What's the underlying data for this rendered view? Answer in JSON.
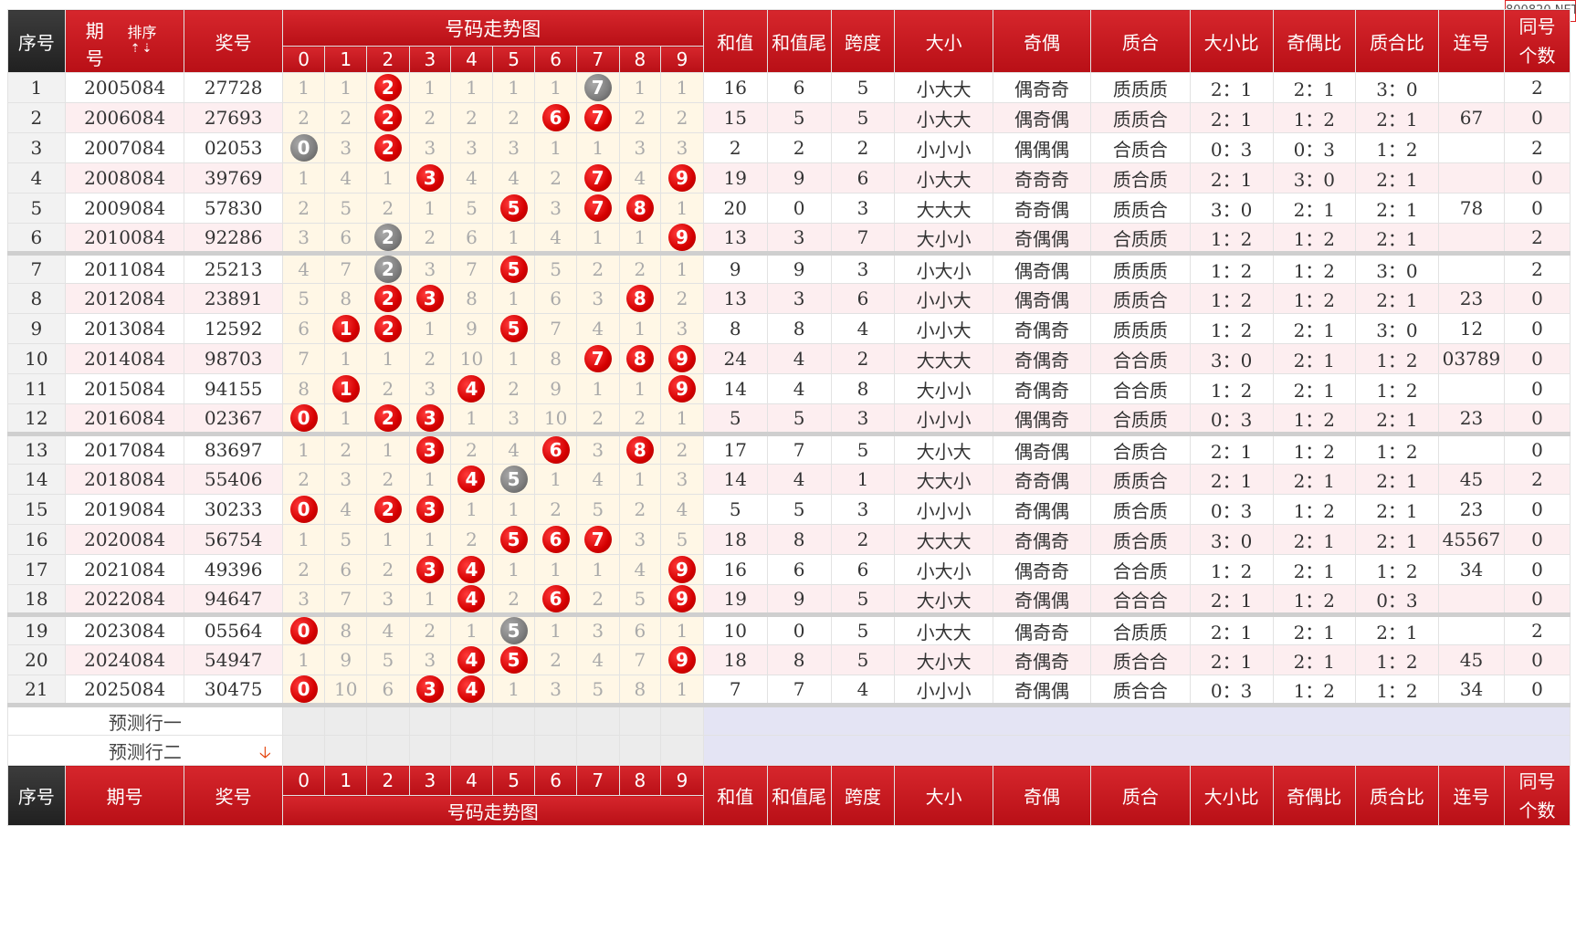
{
  "watermark": "800820.NET",
  "header": {
    "seq": "序号",
    "period_top": "期",
    "period_bottom": "号",
    "period_full": "期号",
    "sort": "排序",
    "sort_arrows": "⇡⇣",
    "award": "奖号",
    "trend": "号码走势图",
    "digits": [
      "0",
      "1",
      "2",
      "3",
      "4",
      "5",
      "6",
      "7",
      "8",
      "9"
    ],
    "sum": "和值",
    "sum_tail": "和值尾",
    "span": "跨度",
    "big_small": "大小",
    "odd_even": "奇偶",
    "prime": "质合",
    "bs_ratio": "大小比",
    "oe_ratio": "奇偶比",
    "pc_ratio": "质合比",
    "consecutive": "连号",
    "same_top": "同号",
    "same_bottom": "个数"
  },
  "rows": [
    {
      "seq": "1",
      "period": "2005084",
      "award": "27728",
      "cells": [
        "1",
        "1",
        "B2",
        "1",
        "1",
        "1",
        "1",
        "G7",
        "1",
        "1"
      ],
      "sum": "16",
      "tail": "6",
      "span": "5",
      "bs": "小大大",
      "oe": "偶奇奇",
      "pc": "质质质",
      "bsr": "2：1",
      "oer": "2：1",
      "pcr": "3：0",
      "lian": "",
      "same": "2"
    },
    {
      "seq": "2",
      "period": "2006084",
      "award": "27693",
      "cells": [
        "2",
        "2",
        "B2",
        "2",
        "2",
        "2",
        "B6",
        "B7",
        "2",
        "2"
      ],
      "sum": "15",
      "tail": "5",
      "span": "5",
      "bs": "小大大",
      "oe": "偶奇偶",
      "pc": "质质合",
      "bsr": "2：1",
      "oer": "1：2",
      "pcr": "2：1",
      "lian": "67",
      "same": "0"
    },
    {
      "seq": "3",
      "period": "2007084",
      "award": "02053",
      "cells": [
        "G0",
        "3",
        "B2",
        "3",
        "3",
        "3",
        "1",
        "1",
        "3",
        "3"
      ],
      "sum": "2",
      "tail": "2",
      "span": "2",
      "bs": "小小小",
      "oe": "偶偶偶",
      "pc": "合质合",
      "bsr": "0：3",
      "oer": "0：3",
      "pcr": "1：2",
      "lian": "",
      "same": "2"
    },
    {
      "seq": "4",
      "period": "2008084",
      "award": "39769",
      "cells": [
        "1",
        "4",
        "1",
        "B3",
        "4",
        "4",
        "2",
        "B7",
        "4",
        "B9"
      ],
      "sum": "19",
      "tail": "9",
      "span": "6",
      "bs": "小大大",
      "oe": "奇奇奇",
      "pc": "质合质",
      "bsr": "2：1",
      "oer": "3：0",
      "pcr": "2：1",
      "lian": "",
      "same": "0"
    },
    {
      "seq": "5",
      "period": "2009084",
      "award": "57830",
      "cells": [
        "2",
        "5",
        "2",
        "1",
        "5",
        "B5",
        "3",
        "B7",
        "B8",
        "1"
      ],
      "sum": "20",
      "tail": "0",
      "span": "3",
      "bs": "大大大",
      "oe": "奇奇偶",
      "pc": "质质合",
      "bsr": "3：0",
      "oer": "2：1",
      "pcr": "2：1",
      "lian": "78",
      "same": "0"
    },
    {
      "seq": "6",
      "period": "2010084",
      "award": "92286",
      "cells": [
        "3",
        "6",
        "G2",
        "2",
        "6",
        "1",
        "4",
        "1",
        "1",
        "B9"
      ],
      "sum": "13",
      "tail": "3",
      "span": "7",
      "bs": "大小小",
      "oe": "奇偶偶",
      "pc": "合质质",
      "bsr": "1：2",
      "oer": "1：2",
      "pcr": "2：1",
      "lian": "",
      "same": "2"
    },
    {
      "seq": "7",
      "period": "2011084",
      "award": "25213",
      "cells": [
        "4",
        "7",
        "G2",
        "3",
        "7",
        "B5",
        "5",
        "2",
        "2",
        "1"
      ],
      "sum": "9",
      "tail": "9",
      "span": "3",
      "bs": "小大小",
      "oe": "偶奇偶",
      "pc": "质质质",
      "bsr": "1：2",
      "oer": "1：2",
      "pcr": "3：0",
      "lian": "",
      "same": "2"
    },
    {
      "seq": "8",
      "period": "2012084",
      "award": "23891",
      "cells": [
        "5",
        "8",
        "B2",
        "B3",
        "8",
        "1",
        "6",
        "3",
        "B8",
        "2"
      ],
      "sum": "13",
      "tail": "3",
      "span": "6",
      "bs": "小小大",
      "oe": "偶奇偶",
      "pc": "质质合",
      "bsr": "1：2",
      "oer": "1：2",
      "pcr": "2：1",
      "lian": "23",
      "same": "0"
    },
    {
      "seq": "9",
      "period": "2013084",
      "award": "12592",
      "cells": [
        "6",
        "B1",
        "B2",
        "1",
        "9",
        "B5",
        "7",
        "4",
        "1",
        "3"
      ],
      "sum": "8",
      "tail": "8",
      "span": "4",
      "bs": "小小大",
      "oe": "奇偶奇",
      "pc": "质质质",
      "bsr": "1：2",
      "oer": "2：1",
      "pcr": "3：0",
      "lian": "12",
      "same": "0"
    },
    {
      "seq": "10",
      "period": "2014084",
      "award": "98703",
      "cells": [
        "7",
        "1",
        "1",
        "2",
        "10",
        "1",
        "8",
        "B7",
        "B8",
        "B9"
      ],
      "sum": "24",
      "tail": "4",
      "span": "2",
      "bs": "大大大",
      "oe": "奇偶奇",
      "pc": "合合质",
      "bsr": "3：0",
      "oer": "2：1",
      "pcr": "1：2",
      "lian": "03789",
      "same": "0"
    },
    {
      "seq": "11",
      "period": "2015084",
      "award": "94155",
      "cells": [
        "8",
        "B1",
        "2",
        "3",
        "B4",
        "2",
        "9",
        "1",
        "1",
        "B9"
      ],
      "sum": "14",
      "tail": "4",
      "span": "8",
      "bs": "大小小",
      "oe": "奇偶奇",
      "pc": "合合质",
      "bsr": "1：2",
      "oer": "2：1",
      "pcr": "1：2",
      "lian": "",
      "same": "0"
    },
    {
      "seq": "12",
      "period": "2016084",
      "award": "02367",
      "cells": [
        "B0",
        "1",
        "B2",
        "B3",
        "1",
        "3",
        "10",
        "2",
        "2",
        "1"
      ],
      "sum": "5",
      "tail": "5",
      "span": "3",
      "bs": "小小小",
      "oe": "偶偶奇",
      "pc": "合质质",
      "bsr": "0：3",
      "oer": "1：2",
      "pcr": "2：1",
      "lian": "23",
      "same": "0"
    },
    {
      "seq": "13",
      "period": "2017084",
      "award": "83697",
      "cells": [
        "1",
        "2",
        "1",
        "B3",
        "2",
        "4",
        "B6",
        "3",
        "B8",
        "2"
      ],
      "sum": "17",
      "tail": "7",
      "span": "5",
      "bs": "大小大",
      "oe": "偶奇偶",
      "pc": "合质合",
      "bsr": "2：1",
      "oer": "1：2",
      "pcr": "1：2",
      "lian": "",
      "same": "0"
    },
    {
      "seq": "14",
      "period": "2018084",
      "award": "55406",
      "cells": [
        "2",
        "3",
        "2",
        "1",
        "B4",
        "G5",
        "1",
        "4",
        "1",
        "3"
      ],
      "sum": "14",
      "tail": "4",
      "span": "1",
      "bs": "大大小",
      "oe": "奇奇偶",
      "pc": "质质合",
      "bsr": "2：1",
      "oer": "2：1",
      "pcr": "2：1",
      "lian": "45",
      "same": "2"
    },
    {
      "seq": "15",
      "period": "2019084",
      "award": "30233",
      "cells": [
        "B0",
        "4",
        "B2",
        "B3",
        "1",
        "1",
        "2",
        "5",
        "2",
        "4"
      ],
      "sum": "5",
      "tail": "5",
      "span": "3",
      "bs": "小小小",
      "oe": "奇偶偶",
      "pc": "质合质",
      "bsr": "0：3",
      "oer": "1：2",
      "pcr": "2：1",
      "lian": "23",
      "same": "0"
    },
    {
      "seq": "16",
      "period": "2020084",
      "award": "56754",
      "cells": [
        "1",
        "5",
        "1",
        "1",
        "2",
        "B5",
        "B6",
        "B7",
        "3",
        "5"
      ],
      "sum": "18",
      "tail": "8",
      "span": "2",
      "bs": "大大大",
      "oe": "奇偶奇",
      "pc": "质合质",
      "bsr": "3：0",
      "oer": "2：1",
      "pcr": "2：1",
      "lian": "45567",
      "same": "0"
    },
    {
      "seq": "17",
      "period": "2021084",
      "award": "49396",
      "cells": [
        "2",
        "6",
        "2",
        "B3",
        "B4",
        "1",
        "1",
        "1",
        "4",
        "B9"
      ],
      "sum": "16",
      "tail": "6",
      "span": "6",
      "bs": "小大小",
      "oe": "偶奇奇",
      "pc": "合合质",
      "bsr": "1：2",
      "oer": "2：1",
      "pcr": "1：2",
      "lian": "34",
      "same": "0"
    },
    {
      "seq": "18",
      "period": "2022084",
      "award": "94647",
      "cells": [
        "3",
        "7",
        "3",
        "1",
        "B4",
        "2",
        "B6",
        "2",
        "5",
        "B9"
      ],
      "sum": "19",
      "tail": "9",
      "span": "5",
      "bs": "大小大",
      "oe": "奇偶偶",
      "pc": "合合合",
      "bsr": "2：1",
      "oer": "1：2",
      "pcr": "0：3",
      "lian": "",
      "same": "0"
    },
    {
      "seq": "19",
      "period": "2023084",
      "award": "05564",
      "cells": [
        "B0",
        "8",
        "4",
        "2",
        "1",
        "G5",
        "1",
        "3",
        "6",
        "1"
      ],
      "sum": "10",
      "tail": "0",
      "span": "5",
      "bs": "小大大",
      "oe": "偶奇奇",
      "pc": "合质质",
      "bsr": "2：1",
      "oer": "2：1",
      "pcr": "2：1",
      "lian": "",
      "same": "2"
    },
    {
      "seq": "20",
      "period": "2024084",
      "award": "54947",
      "cells": [
        "1",
        "9",
        "5",
        "3",
        "B4",
        "B5",
        "2",
        "4",
        "7",
        "B9"
      ],
      "sum": "18",
      "tail": "8",
      "span": "5",
      "bs": "大小大",
      "oe": "奇偶奇",
      "pc": "质合合",
      "bsr": "2：1",
      "oer": "2：1",
      "pcr": "1：2",
      "lian": "45",
      "same": "0"
    },
    {
      "seq": "21",
      "period": "2025084",
      "award": "30475",
      "cells": [
        "B0",
        "10",
        "6",
        "B3",
        "B4",
        "1",
        "3",
        "5",
        "8",
        "1"
      ],
      "sum": "7",
      "tail": "7",
      "span": "4",
      "bs": "小小小",
      "oe": "奇偶偶",
      "pc": "质合合",
      "bsr": "0：3",
      "oer": "1：2",
      "pcr": "1：2",
      "lian": "34",
      "same": "0"
    }
  ],
  "predict": {
    "row1": "预测行一",
    "row2": "预测行二",
    "arrow": "🡣"
  }
}
